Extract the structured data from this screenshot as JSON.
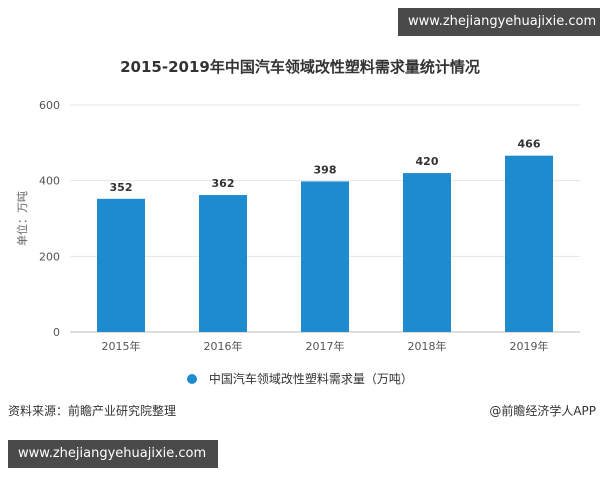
{
  "watermarks": {
    "top": "www.zhejiangyehuajixie.com",
    "bottom": "www.zhejiangyehuajixie.com"
  },
  "footer": {
    "source": "资料来源：前瞻产业研究院整理",
    "brand": "@前瞻经济学人APP"
  },
  "colors": {
    "bar": "#1f8bcf",
    "grid": "#e6e6e6"
  },
  "chart_data": {
    "type": "bar",
    "title": "2015-2019年中国汽车领域改性塑料需求量统计情况",
    "ylabel": "单位：万吨",
    "xlabel": "",
    "categories": [
      "2015年",
      "2016年",
      "2017年",
      "2018年",
      "2019年"
    ],
    "series": [
      {
        "name": "中国汽车领域改性塑料需求量（万吨）",
        "values": [
          352,
          362,
          398,
          420,
          466
        ]
      }
    ],
    "ylim": [
      0,
      600
    ],
    "yticks": [
      0,
      200,
      400,
      600
    ],
    "grid": true,
    "legend_position": "bottom"
  }
}
